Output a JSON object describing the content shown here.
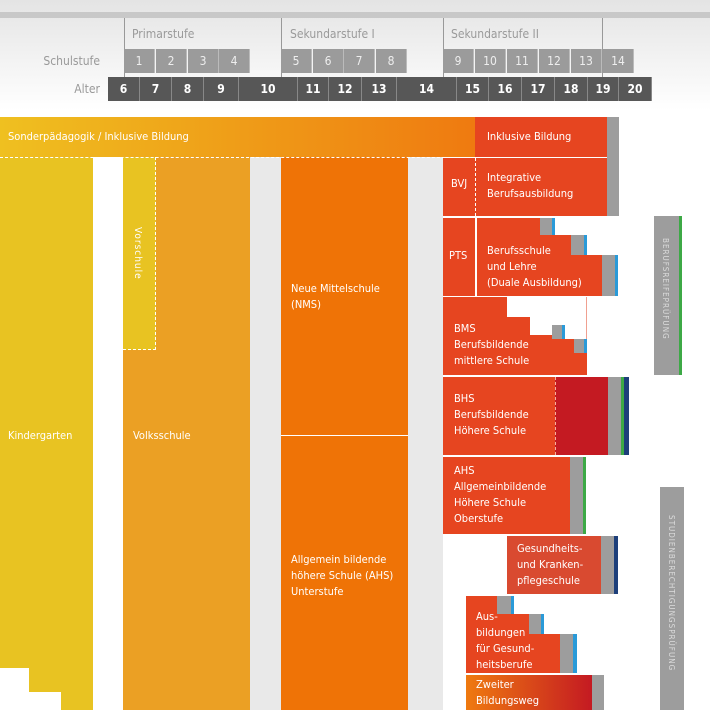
{
  "header": {
    "levels": [
      "Primarstufe",
      "Sekundarstufe I",
      "Sekundarstufe II"
    ],
    "schulstufe_label": "Schulstufe",
    "schulstufen": [
      "1",
      "2",
      "3",
      "4",
      "5",
      "6",
      "7",
      "8",
      "9",
      "10",
      "11",
      "12",
      "13",
      "14"
    ],
    "alter_label": "Alter",
    "alter": [
      "6",
      "7",
      "8",
      "9",
      "10",
      "11",
      "12",
      "13",
      "14",
      "15",
      "16",
      "17",
      "18",
      "19",
      "20"
    ]
  },
  "blocks": {
    "sonder": "Sonderpädagogik / Inklusive Bildung",
    "inklusiv": "Inklusive Bildung",
    "bvj": "BVJ",
    "integrativ": [
      "Integrative",
      "Berufsausbildung"
    ],
    "pts": "PTS",
    "berufsschule": [
      "Berufsschule",
      "und Lehre",
      "(Duale Ausbildung)"
    ],
    "bms": [
      "BMS",
      "Berufsbildende",
      "mittlere Schule"
    ],
    "bhs": [
      "BHS",
      "Berufsbildende",
      "Höhere Schule"
    ],
    "ahs_o": [
      "AHS",
      "Allgemeinbildende",
      "Höhere Schule",
      "Oberstufe"
    ],
    "gesund": [
      "Gesundheits-",
      "und Kranken-",
      "pflegeschule"
    ],
    "ausb": [
      "Aus-",
      "bildungen",
      "für Gesund-",
      "heitsberufe"
    ],
    "zweiter": [
      "Zweiter",
      "Bildungsweg"
    ],
    "kindergarten": "Kindergarten",
    "vorschule": "Vorschule",
    "volksschule": "Volksschule",
    "nms": [
      "Neue Mittelschule",
      "(NMS)"
    ],
    "ahs_u": [
      "Allgemein bildende",
      "höhere Schule (AHS)",
      "Unterstufe"
    ],
    "brp": "BERUFSREIFEPRÜFUNG",
    "sbp": "STUDIENBERECHTIGUNGSPRÜFUNG"
  },
  "colors": {
    "kindergarten": "#e8c322",
    "volksschule": "#eba024",
    "nms": "#ef7306",
    "red": "#e64520",
    "darkred": "#c41a22",
    "gray": "#9d9d9d",
    "blue": "#2a9ad8",
    "green": "#3da946",
    "navy": "#1d3f7a"
  }
}
